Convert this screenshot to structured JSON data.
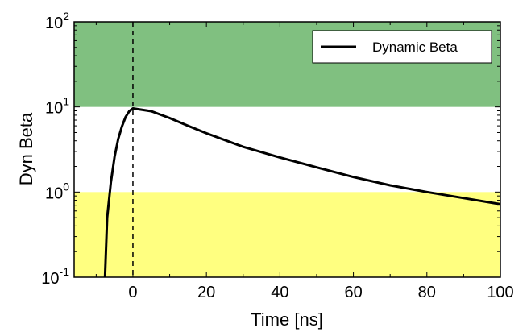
{
  "chart_data": {
    "type": "line",
    "title": "",
    "xlabel": "Time [ns]",
    "ylabel": "Dyn Beta",
    "xlim": [
      -16,
      100
    ],
    "ylim": [
      0.1,
      100
    ],
    "yscale": "log",
    "grid": false,
    "legend": {
      "position": "top-right",
      "entries": [
        "Dynamic Beta"
      ]
    },
    "x_ticks": [
      {
        "value": 0,
        "label": "0"
      },
      {
        "value": 20,
        "label": "20"
      },
      {
        "value": 40,
        "label": "40"
      },
      {
        "value": 60,
        "label": "60"
      },
      {
        "value": 80,
        "label": "80"
      },
      {
        "value": 100,
        "label": "100"
      }
    ],
    "y_ticks": [
      {
        "value": 0.1,
        "base": "10",
        "exp": "-1"
      },
      {
        "value": 1,
        "base": "10",
        "exp": "0"
      },
      {
        "value": 10,
        "base": "10",
        "exp": "1"
      },
      {
        "value": 100,
        "base": "10",
        "exp": "2"
      }
    ],
    "bands": [
      {
        "y_from": 10,
        "y_to": 100,
        "color": "#80c080"
      },
      {
        "y_from": 0.1,
        "y_to": 1,
        "color": "#ffff80"
      }
    ],
    "vline": {
      "x": 0,
      "style": "dashed",
      "color": "#000000"
    },
    "series": [
      {
        "name": "Dynamic Beta",
        "color": "#000000",
        "x": [
          -7.6,
          -7.0,
          -6.0,
          -5.0,
          -4.0,
          -3.0,
          -2.0,
          -1.0,
          0,
          5,
          10,
          15,
          20,
          30,
          40,
          50,
          60,
          70,
          80,
          90,
          100
        ],
        "y": [
          0.1,
          0.5,
          1.3,
          2.6,
          4.2,
          5.9,
          7.6,
          8.9,
          9.6,
          8.9,
          7.4,
          6.0,
          4.9,
          3.4,
          2.55,
          1.95,
          1.5,
          1.2,
          1.0,
          0.85,
          0.72
        ]
      }
    ]
  }
}
